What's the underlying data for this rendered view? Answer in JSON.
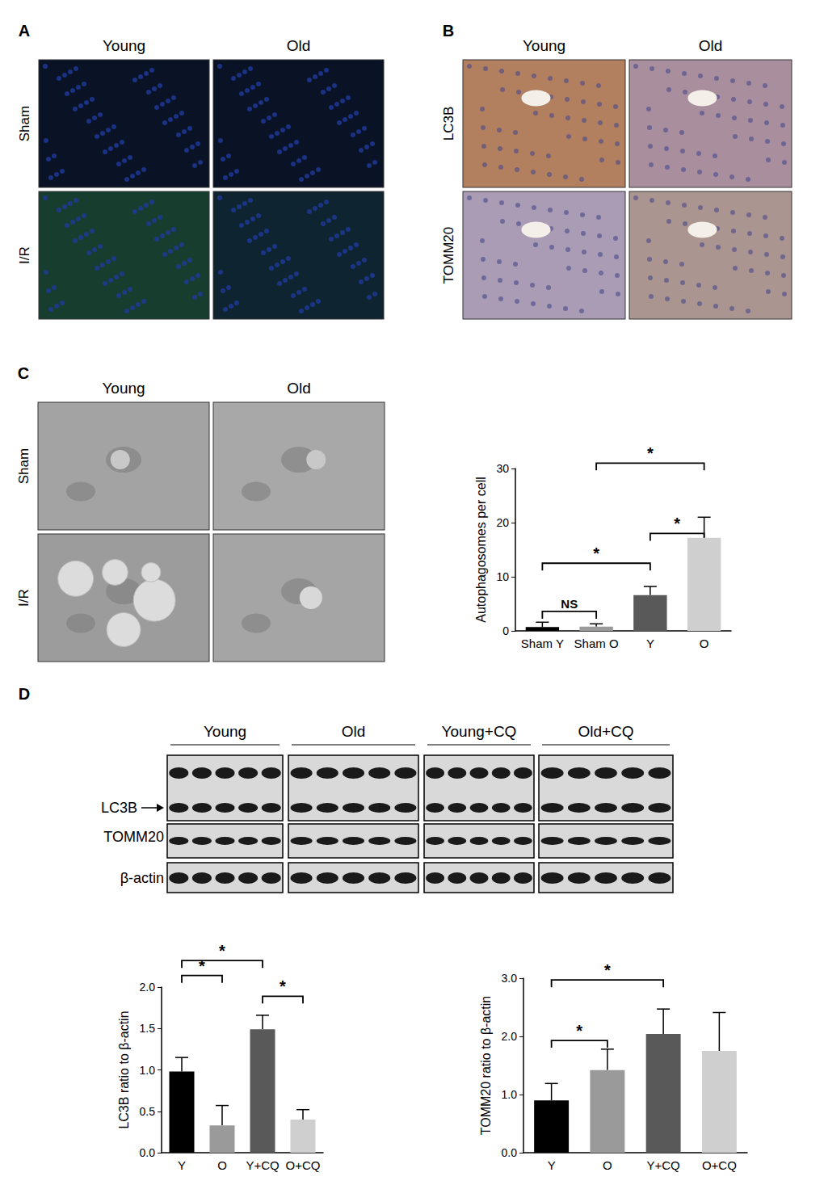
{
  "panels": {
    "A": {
      "label": "A",
      "columns": [
        "Young",
        "Old"
      ],
      "rows": [
        "Sham",
        "I/R"
      ]
    },
    "B": {
      "label": "B",
      "columns": [
        "Young",
        "Old"
      ],
      "rows": [
        "LC3B",
        "TOMM20"
      ]
    },
    "C": {
      "label": "C",
      "columns": [
        "Young",
        "Old"
      ],
      "rows": [
        "Sham",
        "I/R"
      ]
    },
    "D": {
      "label": "D",
      "columns": [
        "Young",
        "Old",
        "Young+CQ",
        "Old+CQ"
      ],
      "rows": [
        "LC3B",
        "TOMM20",
        "β-actin"
      ]
    }
  },
  "chart_data": [
    {
      "type": "bar",
      "ylabel": "Autophagosomes per cell",
      "categories": [
        "Sham Y",
        "Sham O",
        "Y",
        "O"
      ],
      "values": [
        0.7,
        0.8,
        6.6,
        17.2
      ],
      "errors": [
        0.9,
        0.5,
        1.6,
        3.8
      ],
      "colors": [
        "#000000",
        "#9a9a9a",
        "#595959",
        "#cfcfcf"
      ],
      "ylim": [
        0,
        30
      ],
      "yticks": [
        0,
        10,
        20,
        30
      ],
      "grid": false,
      "annotations": [
        {
          "from": "Sham Y",
          "to": "Sham O",
          "y": 3.6,
          "label": "NS"
        },
        {
          "from": "Sham Y",
          "to": "Y",
          "y": 12.5,
          "label": "*"
        },
        {
          "from": "Y",
          "to": "O",
          "y": 18,
          "label": "*"
        },
        {
          "from": "Sham O",
          "to": "O",
          "y": 31,
          "label": "*"
        }
      ]
    },
    {
      "type": "bar",
      "ylabel": "LC3B ratio to β-actin",
      "categories": [
        "Y",
        "O",
        "Y+CQ",
        "O+CQ"
      ],
      "values": [
        0.98,
        0.33,
        1.49,
        0.4
      ],
      "errors": [
        0.17,
        0.24,
        0.17,
        0.12
      ],
      "colors": [
        "#000000",
        "#9a9a9a",
        "#595959",
        "#cfcfcf"
      ],
      "ylim": [
        0,
        2
      ],
      "yticks": [
        {
          "value": 0,
          "label": "0.0"
        },
        0.5,
        {
          "value": 1,
          "label": "1.0"
        },
        1.5,
        {
          "value": 2,
          "label": "2.0"
        }
      ],
      "grid": false,
      "annotations": [
        {
          "from": "Y",
          "to": "O",
          "y": 2.14,
          "label": "*"
        },
        {
          "from": "Y",
          "to": "Y+CQ",
          "y": 2.32,
          "label": "*"
        },
        {
          "from": "Y+CQ",
          "to": "O+CQ",
          "y": 1.89,
          "label": "*"
        }
      ]
    },
    {
      "type": "bar",
      "ylabel": "TOMM20 ratio to β-actin",
      "categories": [
        "Y",
        "O",
        "Y+CQ",
        "O+CQ"
      ],
      "values": [
        0.9,
        1.42,
        2.04,
        1.75
      ],
      "errors": [
        0.29,
        0.36,
        0.43,
        0.66
      ],
      "colors": [
        "#000000",
        "#9a9a9a",
        "#595959",
        "#cfcfcf"
      ],
      "ylim": [
        0,
        3
      ],
      "yticks": [
        {
          "value": 0,
          "label": "0.0"
        },
        {
          "value": 1,
          "label": "1.0"
        },
        {
          "value": 2,
          "label": "2.0"
        },
        {
          "value": 3,
          "label": "3.0"
        }
      ],
      "grid": false,
      "annotations": [
        {
          "from": "Y",
          "to": "O",
          "y": 1.93,
          "label": "*"
        },
        {
          "from": "Y",
          "to": "Y+CQ",
          "y": 2.97,
          "label": "*"
        }
      ]
    }
  ]
}
